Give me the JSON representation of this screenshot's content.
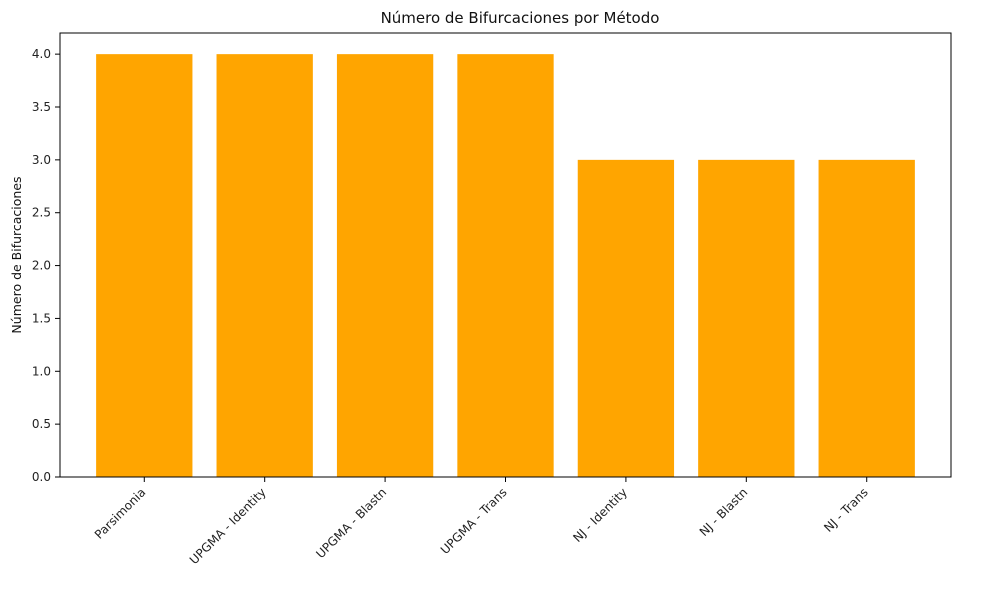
{
  "chart_data": {
    "type": "bar",
    "title": "Número de Bifurcaciones por Método",
    "xlabel": "",
    "ylabel": "Número de Bifurcaciones",
    "categories": [
      "Parsimonia",
      "UPGMA - Identity",
      "UPGMA - Blastn",
      "UPGMA - Trans",
      "NJ - Identity",
      "NJ - Blastn",
      "NJ - Trans"
    ],
    "values": [
      4,
      4,
      4,
      4,
      3,
      3,
      3
    ],
    "ylim": [
      0,
      4.2
    ],
    "yticks": [
      "0.0",
      "0.5",
      "1.0",
      "1.5",
      "2.0",
      "2.5",
      "3.0",
      "3.5",
      "4.0"
    ],
    "bar_color": "#FFA500",
    "grid": false,
    "legend": "none"
  }
}
